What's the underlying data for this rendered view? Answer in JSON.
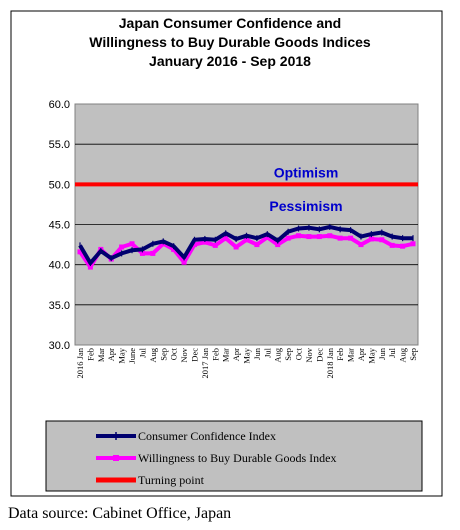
{
  "source": "Data source: Cabinet Office, Japan",
  "chart_data": {
    "type": "line",
    "title": [
      "Japan Consumer Confidence and",
      "Willingness to Buy Durable Goods Indices",
      "January 2016 - Sep 2018"
    ],
    "ylim": [
      30.0,
      60.0
    ],
    "yticks": [
      "30.0",
      "35.0",
      "40.0",
      "45.0",
      "50.0",
      "55.0",
      "60.0"
    ],
    "grid": true,
    "legend_position": "bottom",
    "annotations": [
      {
        "text": "Optimism",
        "y": 51.5
      },
      {
        "text": "Pessimism",
        "y": 47.3
      }
    ],
    "x": [
      "2016 Jan",
      "Feb",
      "Mar",
      "Apr",
      "May",
      "June",
      "Jul",
      "Aug",
      "Sep",
      "Oct",
      "Nov",
      "Dec",
      "2017 Jan",
      "Feb",
      "Mar",
      "Apr",
      "May",
      "Jun",
      "Jul",
      "Aug",
      "Sep",
      "Oct",
      "Nov",
      "Dec",
      "2018 Jan",
      "Feb",
      "Mar",
      "Apr",
      "May",
      "Jun",
      "Jul",
      "Aug",
      "Sep"
    ],
    "series": [
      {
        "name": "Consumer Confidence Index",
        "color": "#00006e",
        "values": [
          42.4,
          40.2,
          41.7,
          40.8,
          41.4,
          41.8,
          41.9,
          42.6,
          42.9,
          42.3,
          40.9,
          43.1,
          43.2,
          43.1,
          43.9,
          43.2,
          43.6,
          43.3,
          43.8,
          43.0,
          44.1,
          44.5,
          44.6,
          44.4,
          44.7,
          44.4,
          44.3,
          43.5,
          43.8,
          44.0,
          43.5,
          43.3,
          43.3
        ]
      },
      {
        "name": "Willingness to Buy Durable Goods Index",
        "color": "#ff00ff",
        "values": [
          41.6,
          39.7,
          41.9,
          40.7,
          42.2,
          42.6,
          41.4,
          41.4,
          42.6,
          41.9,
          40.3,
          42.5,
          42.8,
          42.4,
          43.3,
          42.2,
          43.1,
          42.5,
          43.4,
          42.5,
          43.3,
          43.6,
          43.5,
          43.5,
          43.6,
          43.3,
          43.3,
          42.5,
          43.2,
          43.1,
          42.4,
          42.3,
          42.6
        ]
      },
      {
        "name": "Turning point",
        "color": "#ff0000",
        "values": [
          50,
          50,
          50,
          50,
          50,
          50,
          50,
          50,
          50,
          50,
          50,
          50,
          50,
          50,
          50,
          50,
          50,
          50,
          50,
          50,
          50,
          50,
          50,
          50,
          50,
          50,
          50,
          50,
          50,
          50,
          50,
          50,
          50
        ]
      }
    ]
  }
}
